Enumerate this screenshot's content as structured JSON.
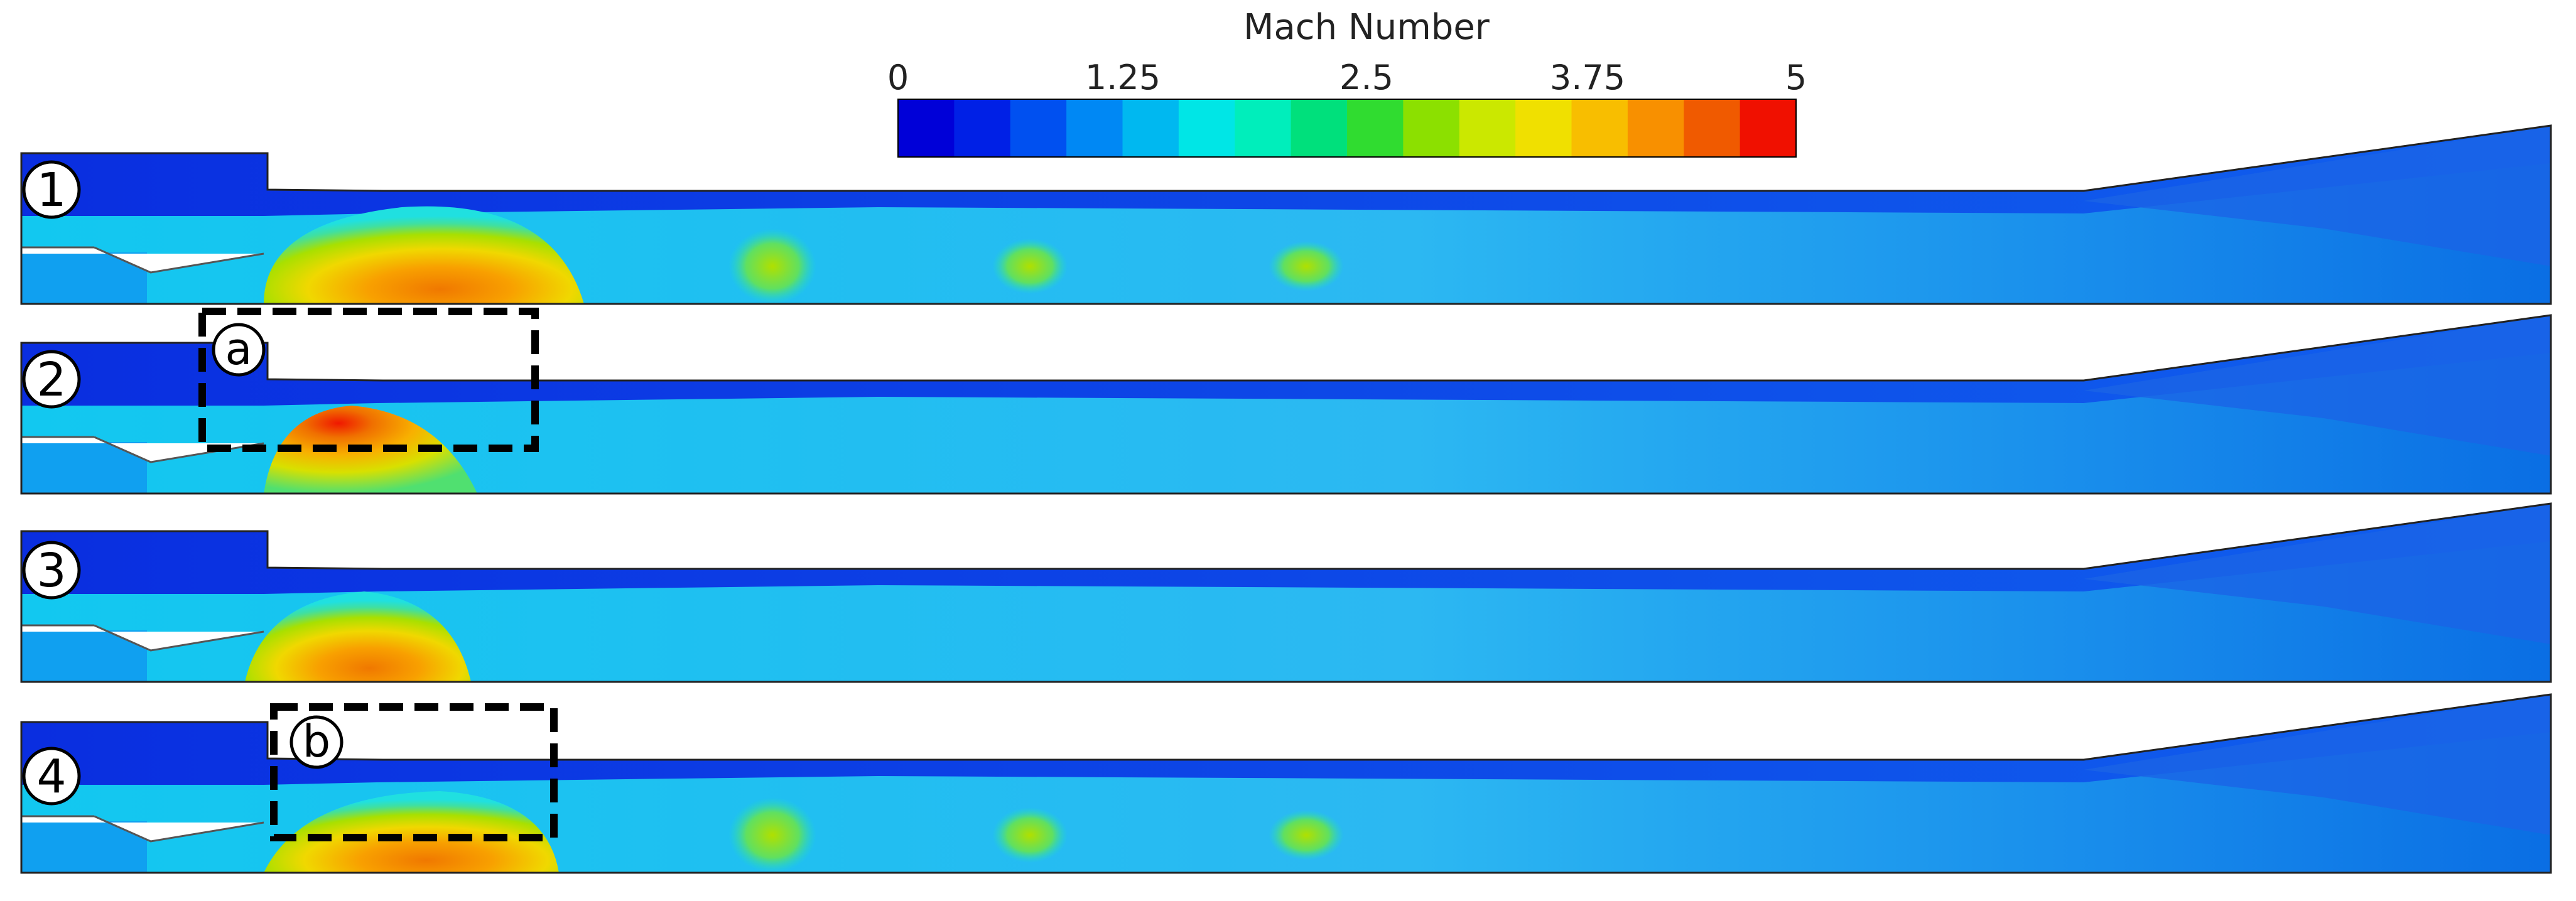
{
  "colorbar": {
    "title": "Mach Number",
    "ticks": [
      "0",
      "1.25",
      "2.5",
      "3.75",
      "5"
    ],
    "min": 0,
    "max": 5,
    "colors": [
      "#0000d8",
      "#0020e6",
      "#0050f0",
      "#0088f4",
      "#00b8f0",
      "#00e6e6",
      "#00eebb",
      "#00e07c",
      "#30dc30",
      "#8ce000",
      "#cbe800",
      "#f0e000",
      "#f8be00",
      "#f89000",
      "#f05a00",
      "#f01000"
    ]
  },
  "panels": [
    {
      "label": "1"
    },
    {
      "label": "2"
    },
    {
      "label": "3"
    },
    {
      "label": "4"
    }
  ],
  "annotations": [
    {
      "label": "a",
      "panel": "2"
    },
    {
      "label": "b",
      "panel": "4"
    }
  ]
}
